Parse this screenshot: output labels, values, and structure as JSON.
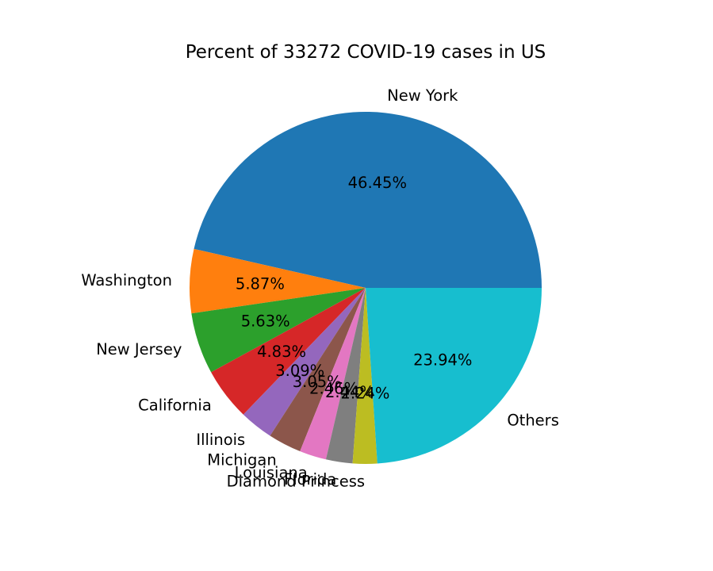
{
  "chart_data": {
    "type": "pie",
    "title": "Percent of 33272 COVID-19 cases in US",
    "categories": [
      "New York",
      "Washington",
      "New Jersey",
      "California",
      "Illinois",
      "Michigan",
      "Louisiana",
      "Florida",
      "Diamond Princess",
      "Others"
    ],
    "values": [
      46.45,
      5.87,
      5.63,
      4.83,
      3.09,
      3.05,
      2.46,
      2.44,
      2.24,
      23.94
    ],
    "value_labels": [
      "46.45%",
      "5.87%",
      "5.63%",
      "4.83%",
      "3.09%",
      "3.05%",
      "2.46%",
      "2.44%",
      "2.24%",
      "23.94%"
    ],
    "colors": [
      "#1f77b4",
      "#ff7f0e",
      "#2ca02c",
      "#d62728",
      "#9467bd",
      "#8c564b",
      "#e377c2",
      "#7f7f7f",
      "#bcbd22",
      "#17becf"
    ]
  }
}
